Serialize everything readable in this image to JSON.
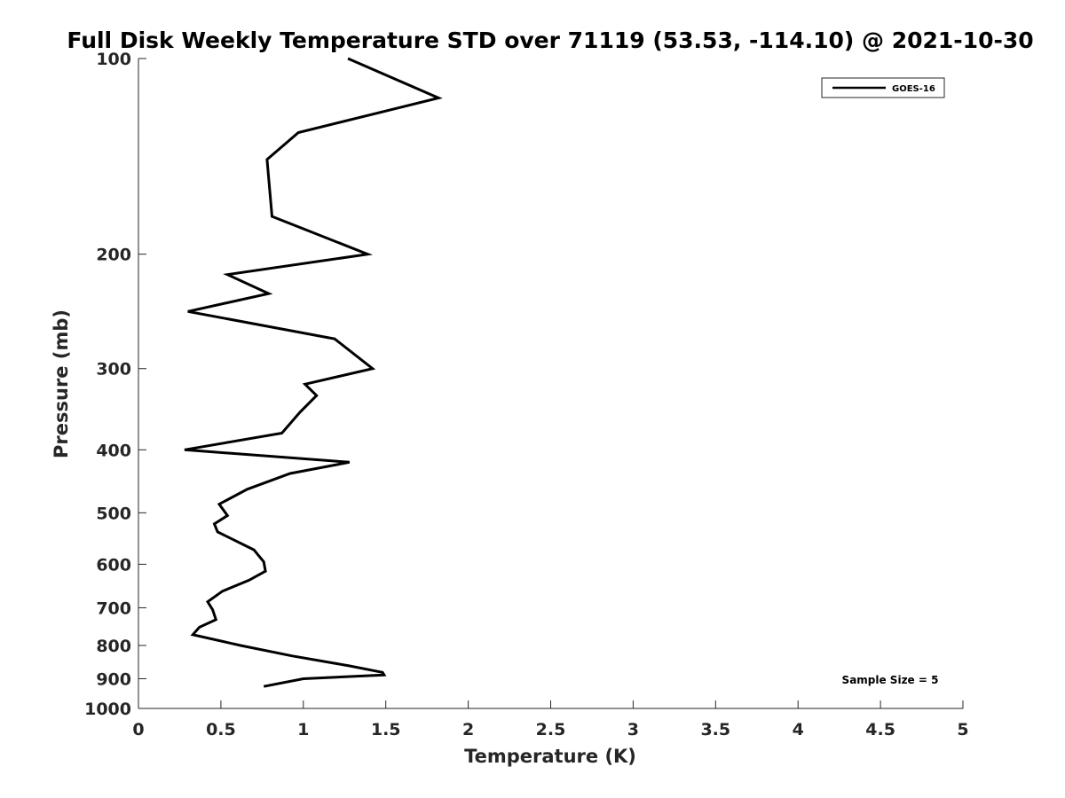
{
  "chart_data": {
    "type": "line",
    "title": "Full Disk Weekly Temperature STD over 71119 (53.53, -114.10) @ 2021-10-30",
    "xlabel": "Temperature (K)",
    "ylabel": "Pressure (mb)",
    "xlim": [
      0,
      5
    ],
    "ylim": [
      100,
      1000
    ],
    "y_scale": "log",
    "y_reversed": true,
    "x_ticks": [
      0,
      0.5,
      1,
      1.5,
      2,
      2.5,
      3,
      3.5,
      4,
      4.5,
      5
    ],
    "x_tick_labels": [
      "0",
      "0.5",
      "1",
      "1.5",
      "2",
      "2.5",
      "3",
      "3.5",
      "4",
      "4.5",
      "5"
    ],
    "y_ticks": [
      100,
      200,
      300,
      400,
      500,
      600,
      700,
      800,
      900,
      1000
    ],
    "y_tick_labels": [
      "100",
      "200",
      "300",
      "400",
      "500",
      "600",
      "700",
      "800",
      "900",
      "1000"
    ],
    "grid": false,
    "legend_position": "top-right",
    "annotation": "Sample Size = 5",
    "series": [
      {
        "name": "GOES-16",
        "color": "#000000",
        "x": [
          1.27,
          1.82,
          0.97,
          0.78,
          0.81,
          1.39,
          0.54,
          0.79,
          0.3,
          1.19,
          1.42,
          1.01,
          1.08,
          0.98,
          0.87,
          0.28,
          1.28,
          0.92,
          0.66,
          0.49,
          0.54,
          0.46,
          0.48,
          0.7,
          0.76,
          0.77,
          0.67,
          0.51,
          0.42,
          0.45,
          0.47,
          0.37,
          0.33,
          0.62,
          0.93,
          1.28,
          1.48,
          1.49,
          1.0,
          0.76
        ],
        "y": [
          100,
          115,
          130,
          143,
          175,
          200,
          215,
          230,
          245,
          270,
          300,
          317,
          330,
          350,
          377,
          400,
          418,
          435,
          460,
          485,
          505,
          520,
          535,
          570,
          595,
          615,
          635,
          660,
          685,
          705,
          730,
          750,
          770,
          800,
          830,
          860,
          880,
          888,
          900,
          925
        ]
      }
    ]
  }
}
